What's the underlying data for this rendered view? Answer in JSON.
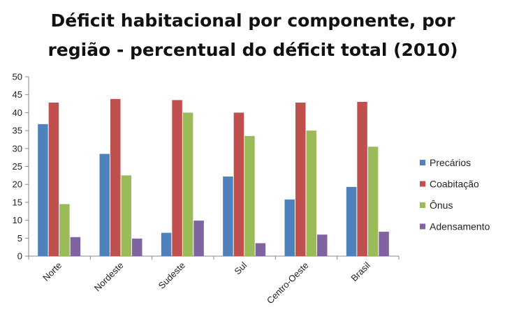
{
  "chart_data": {
    "type": "bar",
    "title_lines": [
      "Déficit habitacional por componente, por",
      "região - percentual do déficit total (2010)"
    ],
    "categories": [
      "Norte",
      "Nordeste",
      "Sudeste",
      "Sul",
      "Centro-Oeste",
      "Brasil"
    ],
    "series": [
      {
        "name": "Precários",
        "color": "#4F81BD",
        "values": [
          36.8,
          28.5,
          6.5,
          22.2,
          15.8,
          19.3
        ]
      },
      {
        "name": "Coabitação",
        "color": "#C0504D",
        "values": [
          42.8,
          43.8,
          43.5,
          40.0,
          42.8,
          43.0
        ]
      },
      {
        "name": "Ônus",
        "color": "#9BBB59",
        "values": [
          14.5,
          22.5,
          40.0,
          33.5,
          35.0,
          30.5
        ]
      },
      {
        "name": "Adensamento",
        "color": "#8064A2",
        "values": [
          5.3,
          4.9,
          9.9,
          3.6,
          6.0,
          6.8
        ]
      }
    ],
    "ylim": [
      0,
      50
    ],
    "yticks": [
      "0",
      "5",
      "10",
      "15",
      "20",
      "25",
      "30",
      "35",
      "40",
      "45",
      "50"
    ],
    "grid": false,
    "legend_position": "right"
  }
}
